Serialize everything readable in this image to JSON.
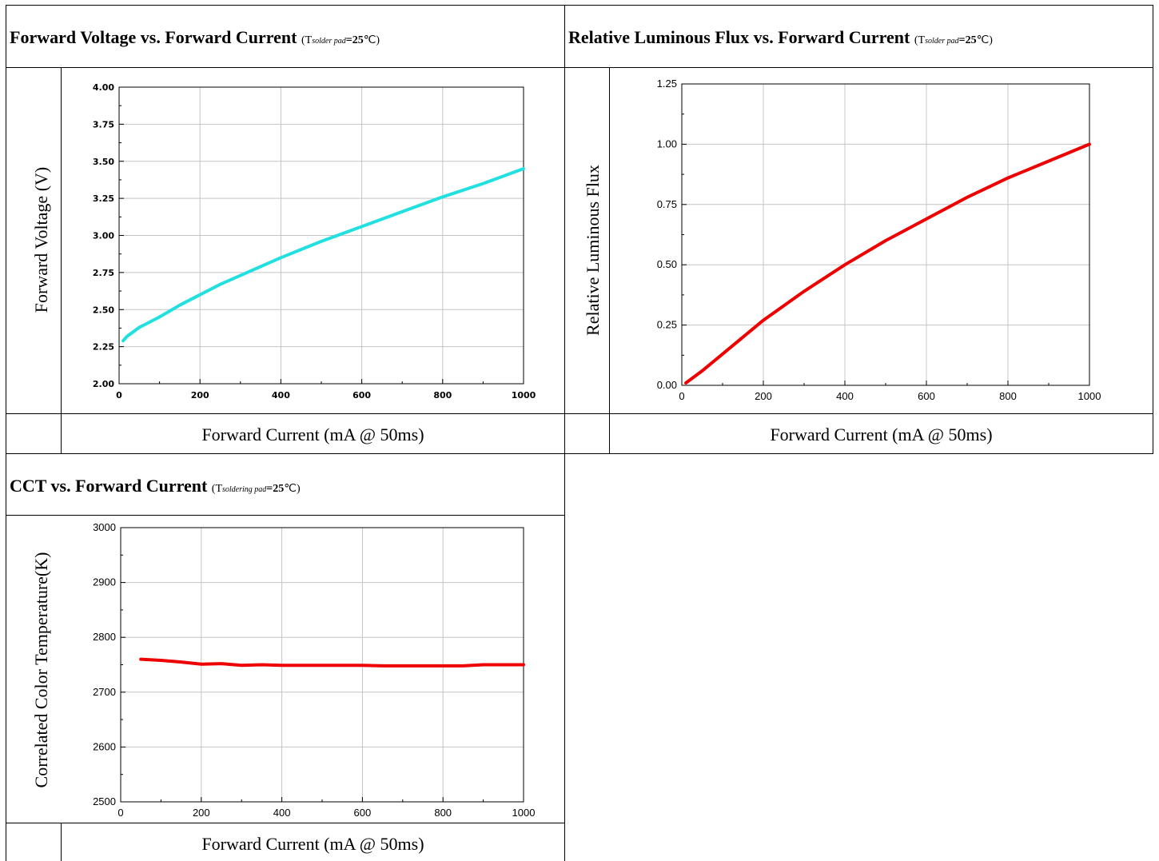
{
  "charts": [
    {
      "title": "Forward Voltage vs. Forward Current",
      "cond_open": "(T",
      "cond_sub": "solder pad",
      "cond_val": "=25",
      "cond_close": "℃)",
      "xlabel": "Forward Current (mA @ 50ms)",
      "ylabel": "Forward Voltage (V)"
    },
    {
      "title": "Relative Luminous Flux vs. Forward Current",
      "cond_open": "(T",
      "cond_sub": "solder pad",
      "cond_val": "=25",
      "cond_close": "℃)",
      "xlabel": "Forward Current (mA @ 50ms)",
      "ylabel": "Relative Luminous Flux"
    },
    {
      "title": "CCT vs. Forward Current",
      "cond_open": "(T",
      "cond_sub": "soldering pad",
      "cond_val": "=25",
      "cond_close": "℃)",
      "xlabel": "Forward Current (mA @ 50ms)",
      "ylabel": "Correlated Color Temperature(K)"
    }
  ],
  "chart_data": [
    {
      "type": "line",
      "title": "Forward Voltage vs. Forward Current",
      "xlabel": "Forward Current (mA @ 50ms)",
      "ylabel": "Forward Voltage (V)",
      "xlim": [
        0,
        1000
      ],
      "ylim": [
        2.0,
        4.0
      ],
      "xticks": [
        "0",
        "200",
        "400",
        "600",
        "800",
        "1000"
      ],
      "yticks": [
        "2.00",
        "2.25",
        "2.50",
        "2.75",
        "3.00",
        "3.25",
        "3.50",
        "3.75",
        "4.00"
      ],
      "grid": true,
      "color": "#22e0e0",
      "series": [
        {
          "x": [
            10,
            20,
            50,
            100,
            150,
            200,
            250,
            300,
            400,
            500,
            600,
            700,
            800,
            900,
            1000
          ],
          "y": [
            2.29,
            2.32,
            2.38,
            2.45,
            2.53,
            2.6,
            2.67,
            2.73,
            2.85,
            2.96,
            3.06,
            3.16,
            3.26,
            3.35,
            3.45
          ]
        }
      ]
    },
    {
      "type": "line",
      "title": "Relative Luminous Flux vs. Forward Current",
      "xlabel": "Forward Current (mA @ 50ms)",
      "ylabel": "Relative Luminous Flux",
      "xlim": [
        0,
        1000
      ],
      "ylim": [
        0.0,
        1.25
      ],
      "xticks": [
        "0",
        "200",
        "400",
        "600",
        "800",
        "1000"
      ],
      "yticks": [
        "0.00",
        "0.25",
        "0.50",
        "0.75",
        "1.00",
        "1.25"
      ],
      "grid": true,
      "color": "#ee0000",
      "series": [
        {
          "x": [
            10,
            50,
            100,
            150,
            200,
            300,
            400,
            500,
            600,
            700,
            800,
            900,
            1000
          ],
          "y": [
            0.01,
            0.06,
            0.13,
            0.2,
            0.27,
            0.39,
            0.5,
            0.6,
            0.69,
            0.78,
            0.86,
            0.93,
            1.0
          ]
        }
      ]
    },
    {
      "type": "line",
      "title": "CCT vs. Forward Current",
      "xlabel": "Forward Current (mA @ 50ms)",
      "ylabel": "Correlated Color Temperature(K)",
      "xlim": [
        0,
        1000
      ],
      "ylim": [
        2500,
        3000
      ],
      "xticks": [
        "0",
        "200",
        "400",
        "600",
        "800",
        "1000"
      ],
      "yticks": [
        "2500",
        "2600",
        "2700",
        "2800",
        "2900",
        "3000"
      ],
      "grid": true,
      "color": "#ee0000",
      "series": [
        {
          "x": [
            50,
            100,
            150,
            200,
            250,
            300,
            350,
            400,
            450,
            500,
            550,
            600,
            650,
            700,
            750,
            800,
            850,
            900,
            950,
            1000
          ],
          "y": [
            2760,
            2758,
            2755,
            2751,
            2752,
            2749,
            2750,
            2749,
            2749,
            2749,
            2749,
            2749,
            2748,
            2748,
            2748,
            2748,
            2748,
            2750,
            2750,
            2750
          ]
        }
      ]
    }
  ]
}
